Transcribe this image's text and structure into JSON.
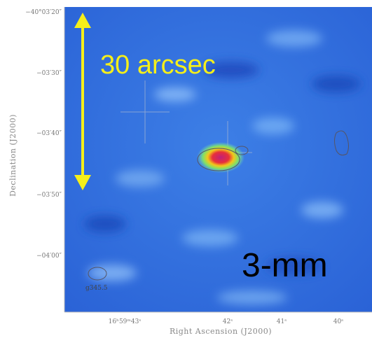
{
  "axes": {
    "y_label": "Declination (J2000)",
    "x_label": "Right Ascension (J2000)",
    "y_ticks": [
      "−40°03′20″",
      "−03′30″",
      "−03′40″",
      "−03′50″",
      "−04′00″"
    ],
    "x_ticks": [
      "16ʰ59ᵐ43ˢ",
      "42ˢ",
      "41ˢ",
      "40ˢ"
    ]
  },
  "annotations": {
    "scale_bar": "30 arcsec",
    "band": "3-mm",
    "source": "g345.5"
  }
}
